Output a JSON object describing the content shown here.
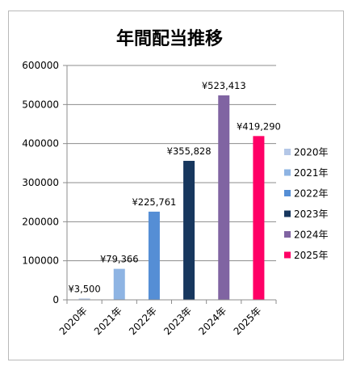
{
  "chart_data": {
    "type": "bar",
    "title": "年間配当推移",
    "xlabel": "",
    "ylabel": "",
    "categories": [
      "2020年",
      "2021年",
      "2022年",
      "2023年",
      "2024年",
      "2025年"
    ],
    "values": [
      3500,
      79366,
      225761,
      355828,
      523413,
      419290
    ],
    "data_labels": [
      "¥3,500",
      "¥79,366",
      "¥225,761",
      "¥355,828",
      "¥523,413",
      "¥419,290"
    ],
    "colors": [
      "#b4c7e7",
      "#8eb4e3",
      "#558ed5",
      "#17375e",
      "#8064a2",
      "#ff0066"
    ],
    "ylim": [
      0,
      600000
    ],
    "yticks": [
      0,
      100000,
      200000,
      300000,
      400000,
      500000,
      600000
    ],
    "ytick_labels": [
      "0",
      "100000",
      "200000",
      "300000",
      "400000",
      "500000",
      "600000"
    ],
    "grid": true,
    "legend": {
      "position": "right",
      "entries": [
        "2020年",
        "2021年",
        "2022年",
        "2023年",
        "2024年",
        "2025年"
      ]
    }
  }
}
